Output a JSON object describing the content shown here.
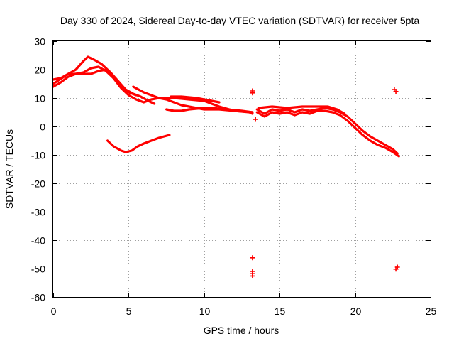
{
  "chart_data": {
    "type": "scatter",
    "title": "Day 330 of 2024, Sidereal Day-to-day VTEC variation (SDTVAR) for receiver 5pta",
    "xlabel": "GPS time / hours",
    "ylabel": "SDTVAR / TECUs",
    "xlim": [
      0,
      25
    ],
    "ylim": [
      -60,
      30
    ],
    "xticks": [
      0,
      5,
      10,
      15,
      20,
      25
    ],
    "yticks": [
      30,
      20,
      10,
      0,
      -10,
      -20,
      -30,
      -40,
      -50,
      -60
    ],
    "grid": true,
    "color": "#ff0000",
    "series": [
      {
        "name": "track-1",
        "points": [
          [
            0,
            14
          ],
          [
            0.5,
            15.5
          ],
          [
            1,
            17.5
          ],
          [
            1.5,
            18.5
          ],
          [
            2,
            19
          ],
          [
            2.5,
            20.5
          ],
          [
            3,
            21
          ],
          [
            3.5,
            19.5
          ],
          [
            4,
            17
          ],
          [
            4.5,
            13.5
          ],
          [
            5,
            11
          ],
          [
            5.5,
            9.5
          ],
          [
            6,
            8.5
          ],
          [
            6.5,
            9.5
          ],
          [
            7,
            10
          ],
          [
            8,
            10
          ],
          [
            9,
            9.5
          ],
          [
            10,
            9
          ],
          [
            11,
            7
          ],
          [
            12,
            5.5
          ],
          [
            13,
            5
          ],
          [
            13.2,
            4.5
          ]
        ]
      },
      {
        "name": "track-2",
        "points": [
          [
            0,
            16.5
          ],
          [
            0.5,
            17
          ],
          [
            1,
            18.5
          ],
          [
            1.5,
            20
          ],
          [
            2,
            23
          ],
          [
            2.3,
            24.5
          ],
          [
            2.7,
            23.5
          ],
          [
            3.2,
            22
          ],
          [
            3.8,
            19
          ],
          [
            4.3,
            16
          ],
          [
            4.8,
            13
          ],
          [
            5.3,
            11.5
          ],
          [
            5.8,
            10.5
          ],
          [
            6.3,
            9
          ],
          [
            6.7,
            8
          ]
        ]
      },
      {
        "name": "track-3",
        "points": [
          [
            0,
            15
          ],
          [
            1,
            18.5
          ],
          [
            2,
            18.5
          ],
          [
            2.5,
            18.5
          ],
          [
            3,
            19.5
          ],
          [
            3.5,
            20
          ],
          [
            4,
            17
          ],
          [
            4.5,
            14
          ],
          [
            5,
            12
          ],
          [
            5.5,
            11
          ]
        ]
      },
      {
        "name": "track-4",
        "points": [
          [
            5.3,
            14
          ],
          [
            6,
            12
          ],
          [
            6.5,
            11
          ],
          [
            7,
            10
          ],
          [
            7.5,
            9.5
          ],
          [
            8,
            8.5
          ],
          [
            8.5,
            7.5
          ],
          [
            9,
            7
          ],
          [
            10,
            6
          ],
          [
            11,
            6
          ],
          [
            12,
            5.5
          ],
          [
            13.2,
            5
          ]
        ]
      },
      {
        "name": "track-5",
        "points": [
          [
            7.5,
            6
          ],
          [
            8,
            5.5
          ],
          [
            8.5,
            5.5
          ],
          [
            9,
            6
          ],
          [
            10,
            6.5
          ],
          [
            10.5,
            6.5
          ],
          [
            11.5,
            6
          ],
          [
            12.5,
            5.5
          ],
          [
            13.2,
            5
          ]
        ]
      },
      {
        "name": "track-6",
        "points": [
          [
            3.6,
            -5
          ],
          [
            4,
            -7
          ],
          [
            4.5,
            -8.5
          ],
          [
            4.8,
            -9
          ],
          [
            5.2,
            -8.5
          ],
          [
            5.6,
            -7
          ],
          [
            6,
            -6
          ],
          [
            6.5,
            -5
          ],
          [
            7,
            -4
          ],
          [
            7.7,
            -3
          ]
        ]
      },
      {
        "name": "track-7",
        "points": [
          [
            7.8,
            10.5
          ],
          [
            8.5,
            10.5
          ],
          [
            9.5,
            10
          ],
          [
            10.5,
            9
          ],
          [
            11,
            8.5
          ]
        ]
      },
      {
        "name": "track-8",
        "points": [
          [
            13.5,
            6
          ],
          [
            14,
            4.5
          ],
          [
            14.5,
            6
          ],
          [
            15,
            5.5
          ],
          [
            15.5,
            6
          ],
          [
            16,
            5
          ],
          [
            16.5,
            6
          ],
          [
            17,
            5.5
          ],
          [
            17.5,
            6
          ],
          [
            18,
            6.5
          ],
          [
            18.5,
            6
          ],
          [
            19,
            5
          ],
          [
            19.5,
            3.5
          ],
          [
            20,
            1
          ],
          [
            20.5,
            -1.5
          ],
          [
            21,
            -3.5
          ],
          [
            21.5,
            -5
          ],
          [
            22,
            -6.5
          ],
          [
            22.5,
            -8
          ],
          [
            22.8,
            -9.5
          ]
        ]
      },
      {
        "name": "track-9",
        "points": [
          [
            13.5,
            5
          ],
          [
            14,
            3.5
          ],
          [
            14.5,
            5
          ],
          [
            15,
            4.5
          ],
          [
            15.5,
            5
          ],
          [
            16,
            4
          ],
          [
            16.5,
            5
          ],
          [
            17,
            4.5
          ],
          [
            17.5,
            5.5
          ],
          [
            18,
            5.5
          ],
          [
            18.5,
            5
          ],
          [
            19,
            4
          ],
          [
            19.5,
            2
          ],
          [
            20,
            -0.5
          ],
          [
            20.5,
            -3
          ],
          [
            21,
            -5
          ],
          [
            21.5,
            -6.5
          ],
          [
            22,
            -7.5
          ],
          [
            22.5,
            -9
          ],
          [
            22.9,
            -10.5
          ]
        ]
      },
      {
        "name": "track-10",
        "points": [
          [
            13.6,
            6.5
          ],
          [
            14.5,
            7
          ],
          [
            15.5,
            6.5
          ],
          [
            16.5,
            7
          ],
          [
            17.5,
            7
          ],
          [
            18.2,
            7
          ],
          [
            18.8,
            6
          ],
          [
            19.3,
            4.5
          ]
        ]
      }
    ],
    "isolated_points": [
      [
        13.2,
        12.5
      ],
      [
        13.2,
        11.8
      ],
      [
        13.4,
        2.5
      ],
      [
        13.2,
        -46.2
      ],
      [
        13.2,
        -51
      ],
      [
        13.2,
        -51.8
      ],
      [
        13.2,
        -52.6
      ],
      [
        22.6,
        13
      ],
      [
        22.7,
        12.3
      ],
      [
        22.8,
        -49.5
      ],
      [
        22.7,
        -50.2
      ]
    ]
  }
}
